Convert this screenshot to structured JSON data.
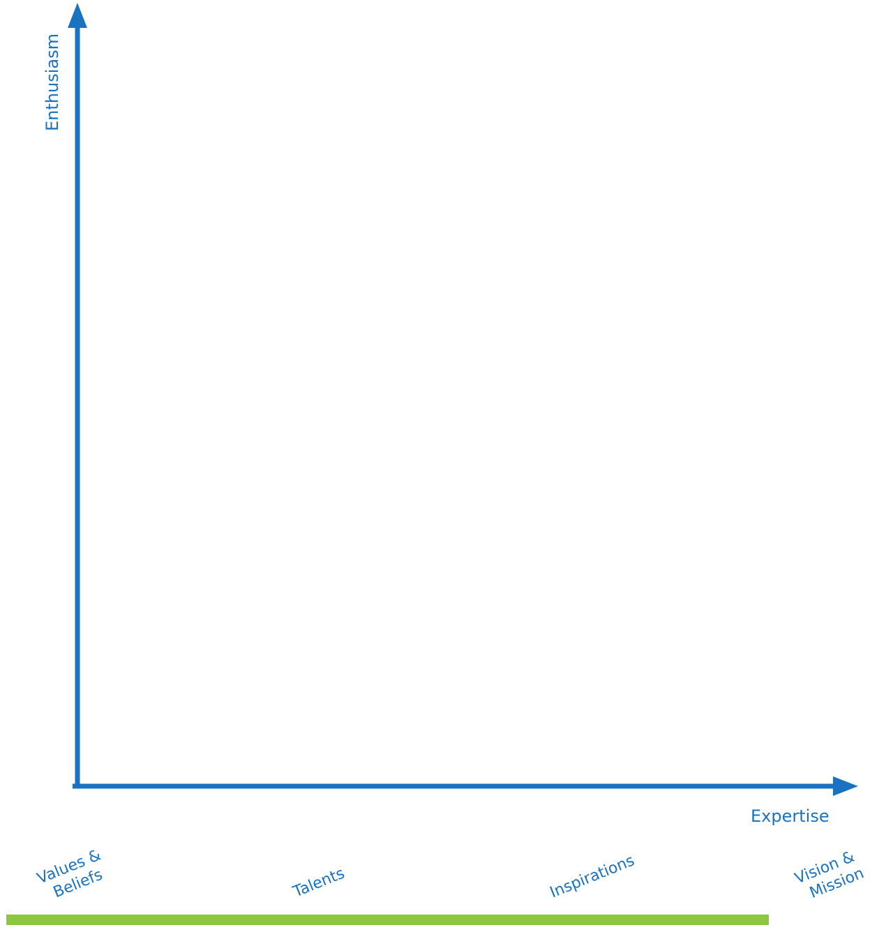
{
  "axes": {
    "y_label": "Enthusiasm",
    "x_label": "Expertise"
  },
  "stages": {
    "values_beliefs": [
      "Values &",
      "Beliefs"
    ],
    "talents": [
      "Talents"
    ],
    "inspirations": [
      "Inspirations"
    ],
    "vision_mission": [
      "Vision &",
      "Mission"
    ]
  },
  "colors": {
    "axis": "#1a72c0",
    "text": "#1a72c0",
    "baseline": "#8dc63f",
    "background": "#ffffff"
  }
}
